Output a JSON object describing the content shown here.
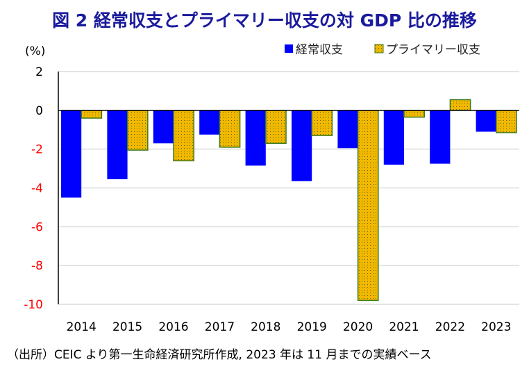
{
  "title": "図 2  経常収支とプライマリー収支の対 GDP 比の推移",
  "footer": "（出所）CEIC より第一生命経済研究所作成, 2023 年は 11 月までの実績ベース",
  "chart_data": {
    "type": "bar",
    "title": "図 2  経常収支とプライマリー収支の対 GDP 比の推移",
    "ylabel": "(%)",
    "xlabel": "",
    "ylim": [
      -10,
      2
    ],
    "yticks": [
      2,
      0,
      -2,
      -4,
      -6,
      -8,
      -10
    ],
    "ytick_labels": [
      "2",
      "0",
      "-2",
      "-4",
      "-6",
      "-8",
      "-10"
    ],
    "negative_tick_color": "#ff0000",
    "positive_tick_color": "#000000",
    "grid": true,
    "legend_position": "top-right",
    "categories": [
      "2014",
      "2015",
      "2016",
      "2017",
      "2018",
      "2019",
      "2020",
      "2021",
      "2022",
      "2023"
    ],
    "series": [
      {
        "name": "経常収支",
        "color": "#0000ff",
        "values": [
          -4.5,
          -3.55,
          -1.7,
          -1.25,
          -2.85,
          -3.65,
          -1.95,
          -2.8,
          -2.75,
          -1.1
        ]
      },
      {
        "name": "プライマリー収支",
        "color": "#f2b800",
        "pattern": "dotted",
        "border_color": "#3a7a1a",
        "values": [
          -0.4,
          -2.05,
          -2.6,
          -1.9,
          -1.7,
          -1.3,
          -9.8,
          -0.35,
          0.55,
          -1.15
        ]
      }
    ]
  }
}
